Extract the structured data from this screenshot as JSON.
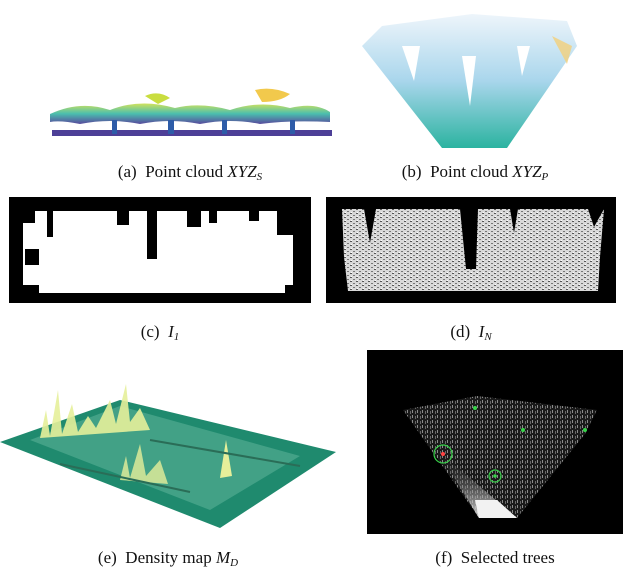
{
  "figure": {
    "panels": [
      {
        "id": "a",
        "prefix": "(a)",
        "text": "Point cloud",
        "math": "XYZ",
        "sub": "S"
      },
      {
        "id": "b",
        "prefix": "(b)",
        "text": "Point cloud",
        "math": "XYZ",
        "sub": "P"
      },
      {
        "id": "c",
        "prefix": "(c)",
        "text": "",
        "math": "I",
        "sub": "1"
      },
      {
        "id": "d",
        "prefix": "(d)",
        "text": "",
        "math": "I",
        "sub": "N"
      },
      {
        "id": "e",
        "prefix": "(e)",
        "text": "Density map",
        "math": "M",
        "sub": "D"
      },
      {
        "id": "f",
        "prefix": "(f)",
        "text": "Selected trees",
        "math": "",
        "sub": ""
      }
    ]
  },
  "colors": {
    "binary_black": "#000000",
    "binary_white": "#ffffff",
    "density_plane": "#1f8a6e",
    "density_peaks": "#e6ef9a",
    "point_cloud_low": "#3a2a8c",
    "point_cloud_mid": "#2bb3a0",
    "point_cloud_high": "#f2c94c",
    "selection_circle": "#37d44a",
    "selection_point": "#ff4444"
  }
}
